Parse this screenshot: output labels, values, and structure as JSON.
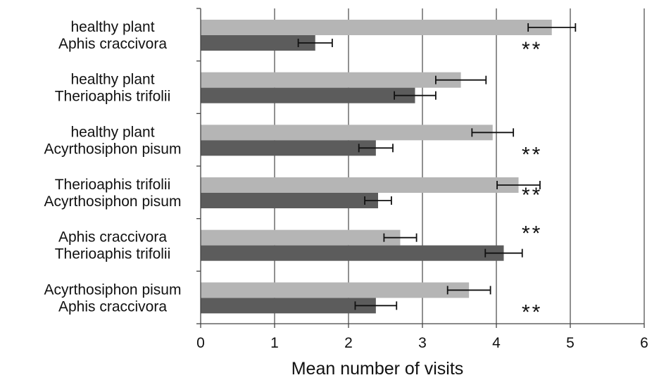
{
  "chart_data": {
    "type": "bar",
    "orientation": "horizontal",
    "title": "",
    "xlabel": "Mean number of visits",
    "ylabel": "",
    "xlim": [
      0,
      6
    ],
    "x_ticks": [
      "0",
      "1",
      "2",
      "3",
      "4",
      "5",
      "6"
    ],
    "grid": "vertical",
    "legend": "none",
    "categories": [
      {
        "label_top": "healthy plant",
        "label_bottom": "Aphis craccivora",
        "top_value": 4.75,
        "top_error": 0.32,
        "bottom_value": 1.55,
        "bottom_error": 0.23,
        "significance": "**"
      },
      {
        "label_top": "healthy plant",
        "label_bottom": "Therioaphis trifolii",
        "top_value": 3.52,
        "top_error": 0.34,
        "bottom_value": 2.9,
        "bottom_error": 0.28,
        "significance": ""
      },
      {
        "label_top": "healthy plant",
        "label_bottom": "Acyrthosiphon pisum",
        "top_value": 3.95,
        "top_error": 0.28,
        "bottom_value": 2.37,
        "bottom_error": 0.23,
        "significance": "**"
      },
      {
        "label_top": "Therioaphis trifolii",
        "label_bottom": "Acyrthosiphon pisum",
        "top_value": 4.3,
        "top_error": 0.29,
        "bottom_value": 2.4,
        "bottom_error": 0.18,
        "significance": "**"
      },
      {
        "label_top": "Aphis craccivora",
        "label_bottom": "Therioaphis trifolii",
        "top_value": 2.7,
        "top_error": 0.22,
        "bottom_value": 4.1,
        "bottom_error": 0.25,
        "significance": "**"
      },
      {
        "label_top": "Acyrthosiphon pisum",
        "label_bottom": "Aphis craccivora",
        "top_value": 3.63,
        "top_error": 0.29,
        "bottom_value": 2.37,
        "bottom_error": 0.28,
        "significance": "**"
      }
    ],
    "colors": {
      "top_bar": "#b5b5b5",
      "bottom_bar": "#5c5c5c",
      "grid": "#555555",
      "axis": "#444444",
      "text": "#111111"
    }
  }
}
